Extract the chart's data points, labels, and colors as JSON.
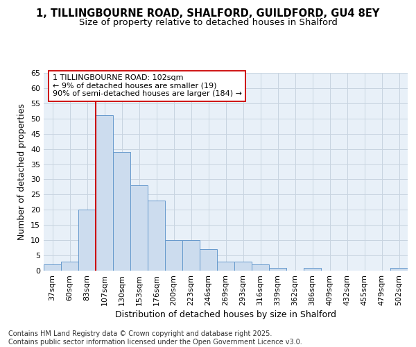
{
  "title_line1": "1, TILLINGBOURNE ROAD, SHALFORD, GUILDFORD, GU4 8EY",
  "title_line2": "Size of property relative to detached houses in Shalford",
  "xlabel": "Distribution of detached houses by size in Shalford",
  "ylabel": "Number of detached properties",
  "categories": [
    "37sqm",
    "60sqm",
    "83sqm",
    "107sqm",
    "130sqm",
    "153sqm",
    "176sqm",
    "200sqm",
    "223sqm",
    "246sqm",
    "269sqm",
    "293sqm",
    "316sqm",
    "339sqm",
    "362sqm",
    "386sqm",
    "409sqm",
    "432sqm",
    "455sqm",
    "479sqm",
    "502sqm"
  ],
  "values": [
    2,
    3,
    20,
    51,
    39,
    28,
    23,
    10,
    10,
    7,
    3,
    3,
    2,
    1,
    0,
    1,
    0,
    0,
    0,
    0,
    1
  ],
  "bar_color": "#ccdcee",
  "bar_edge_color": "#6699cc",
  "grid_color": "#c8d4e0",
  "background_color": "#e8f0f8",
  "vline_x_index": 3,
  "vline_color": "#cc0000",
  "annotation_line1": "1 TILLINGBOURNE ROAD: 102sqm",
  "annotation_line2": "← 9% of detached houses are smaller (19)",
  "annotation_line3": "90% of semi-detached houses are larger (184) →",
  "annotation_box_facecolor": "#ffffff",
  "annotation_box_edgecolor": "#cc0000",
  "ylim": [
    0,
    65
  ],
  "yticks": [
    0,
    5,
    10,
    15,
    20,
    25,
    30,
    35,
    40,
    45,
    50,
    55,
    60,
    65
  ],
  "footer_text": "Contains HM Land Registry data © Crown copyright and database right 2025.\nContains public sector information licensed under the Open Government Licence v3.0.",
  "title_fontsize": 10.5,
  "subtitle_fontsize": 9.5,
  "axis_label_fontsize": 9,
  "tick_fontsize": 8,
  "annotation_fontsize": 8,
  "footer_fontsize": 7
}
